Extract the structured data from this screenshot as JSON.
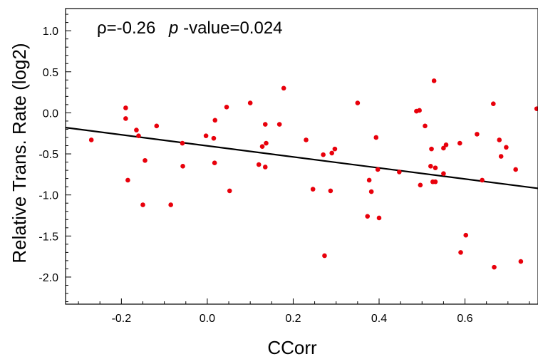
{
  "chart_data": {
    "type": "scatter",
    "title": "",
    "annotation": {
      "rho_text": "ρ=-0.26",
      "p_symbol": "p",
      "p_text": "-value=0.024"
    },
    "xlabel": "CCorr",
    "ylabel": "Relative Trans. Rate (log2)",
    "xlim": [
      -0.33,
      0.77
    ],
    "ylim": [
      -2.33,
      1.27
    ],
    "x_ticks": [
      -0.2,
      0.0,
      0.2,
      0.4,
      0.6
    ],
    "x_tick_labels": [
      "-0.2",
      "0.0",
      "0.2",
      "0.4",
      "0.6"
    ],
    "y_ticks": [
      1.0,
      0.5,
      0.0,
      -0.5,
      -1.0,
      -1.5,
      -2.0
    ],
    "y_tick_labels": [
      "1.0",
      "0.5",
      "0.0",
      "-0.5",
      "-1.0",
      "-1.5",
      "-2.0"
    ],
    "point_color": "#e8000b",
    "line_color": "#000000",
    "trend_line": {
      "x": [
        -0.33,
        0.77
      ],
      "y": [
        -0.18,
        -0.92
      ]
    },
    "points": [
      {
        "x": -0.27,
        "y": -0.33
      },
      {
        "x": -0.19,
        "y": 0.06
      },
      {
        "x": -0.19,
        "y": -0.07
      },
      {
        "x": -0.185,
        "y": -0.82
      },
      {
        "x": -0.165,
        "y": -0.21
      },
      {
        "x": -0.16,
        "y": -0.28
      },
      {
        "x": -0.15,
        "y": -1.12
      },
      {
        "x": -0.145,
        "y": -0.58
      },
      {
        "x": -0.118,
        "y": -0.16
      },
      {
        "x": -0.085,
        "y": -1.12
      },
      {
        "x": -0.058,
        "y": -0.37
      },
      {
        "x": -0.057,
        "y": -0.65
      },
      {
        "x": -0.003,
        "y": -0.28
      },
      {
        "x": 0.015,
        "y": -0.31
      },
      {
        "x": 0.017,
        "y": -0.61
      },
      {
        "x": 0.018,
        "y": -0.09
      },
      {
        "x": 0.045,
        "y": 0.07
      },
      {
        "x": 0.052,
        "y": -0.95
      },
      {
        "x": 0.1,
        "y": 0.12
      },
      {
        "x": 0.12,
        "y": -0.63
      },
      {
        "x": 0.128,
        "y": -0.41
      },
      {
        "x": 0.135,
        "y": -0.66
      },
      {
        "x": 0.135,
        "y": -0.14
      },
      {
        "x": 0.137,
        "y": -0.37
      },
      {
        "x": 0.168,
        "y": -0.14
      },
      {
        "x": 0.178,
        "y": 0.3
      },
      {
        "x": 0.23,
        "y": -0.33
      },
      {
        "x": 0.246,
        "y": -0.93
      },
      {
        "x": 0.27,
        "y": -0.51
      },
      {
        "x": 0.273,
        "y": -1.74
      },
      {
        "x": 0.287,
        "y": -0.95
      },
      {
        "x": 0.29,
        "y": -0.49
      },
      {
        "x": 0.297,
        "y": -0.44
      },
      {
        "x": 0.35,
        "y": 0.12
      },
      {
        "x": 0.373,
        "y": -1.26
      },
      {
        "x": 0.377,
        "y": -0.82
      },
      {
        "x": 0.382,
        "y": -0.96
      },
      {
        "x": 0.393,
        "y": -0.3
      },
      {
        "x": 0.397,
        "y": -0.69
      },
      {
        "x": 0.4,
        "y": -1.28
      },
      {
        "x": 0.447,
        "y": -0.72
      },
      {
        "x": 0.487,
        "y": 0.02
      },
      {
        "x": 0.494,
        "y": 0.03
      },
      {
        "x": 0.496,
        "y": -0.88
      },
      {
        "x": 0.507,
        "y": -0.16
      },
      {
        "x": 0.52,
        "y": -0.65
      },
      {
        "x": 0.522,
        "y": -0.44
      },
      {
        "x": 0.525,
        "y": -0.84
      },
      {
        "x": 0.528,
        "y": 0.39
      },
      {
        "x": 0.531,
        "y": -0.67
      },
      {
        "x": 0.531,
        "y": -0.84
      },
      {
        "x": 0.55,
        "y": -0.74
      },
      {
        "x": 0.55,
        "y": -0.43
      },
      {
        "x": 0.556,
        "y": -0.39
      },
      {
        "x": 0.588,
        "y": -0.37
      },
      {
        "x": 0.59,
        "y": -1.7
      },
      {
        "x": 0.602,
        "y": -1.49
      },
      {
        "x": 0.628,
        "y": -0.26
      },
      {
        "x": 0.64,
        "y": -0.82
      },
      {
        "x": 0.666,
        "y": 0.11
      },
      {
        "x": 0.668,
        "y": -1.88
      },
      {
        "x": 0.68,
        "y": -0.33
      },
      {
        "x": 0.684,
        "y": -0.53
      },
      {
        "x": 0.696,
        "y": -0.42
      },
      {
        "x": 0.718,
        "y": -0.69
      },
      {
        "x": 0.73,
        "y": -1.81
      },
      {
        "x": 0.767,
        "y": 0.05
      }
    ]
  }
}
